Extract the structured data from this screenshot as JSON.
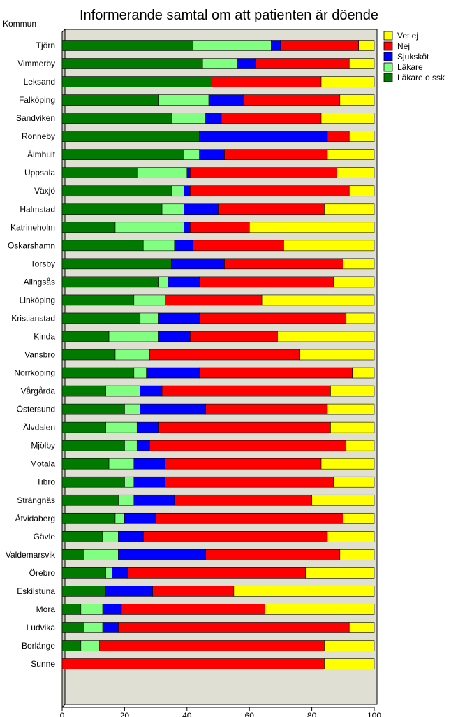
{
  "chart_data": {
    "type": "bar",
    "orientation": "horizontal",
    "stacked": true,
    "title": "Informerande samtal om att patienten är döende",
    "category_axis_label": "Kommun",
    "xlim": [
      0,
      100
    ],
    "x_ticks": [
      "0",
      "20",
      "40",
      "60",
      "80",
      "100"
    ],
    "legend_position": "right",
    "legend_order": [
      "Vet ej",
      "Nej",
      "Sjuksköt",
      "Läkare",
      "Läkare o ssk"
    ],
    "series": [
      {
        "name": "Läkare o ssk",
        "color": "#007b00"
      },
      {
        "name": "Läkare",
        "color": "#80ff80"
      },
      {
        "name": "Sjuksköt",
        "color": "#0000ff"
      },
      {
        "name": "Nej",
        "color": "#ff0000"
      },
      {
        "name": "Vet ej",
        "color": "#ffff00"
      }
    ],
    "categories": [
      "Tjörn",
      "Vimmerby",
      "Leksand",
      "Falköping",
      "Sandviken",
      "Ronneby",
      "Älmhult",
      "Uppsala",
      "Växjö",
      "Halmstad",
      "Katrineholm",
      "Oskarshamn",
      "Torsby",
      "Alingsås",
      "Linköping",
      "Kristianstad",
      "Kinda",
      "Vansbro",
      "Norrköping",
      "Vårgårda",
      "Östersund",
      "Älvdalen",
      "Mjölby",
      "Motala",
      "Tibro",
      "Strängnäs",
      "Åtvidaberg",
      "Gävle",
      "Valdemarsvik",
      "Örebro",
      "Eskilstuna",
      "Mora",
      "Ludvika",
      "Borlänge",
      "Sunne"
    ],
    "values": [
      [
        42,
        25,
        3,
        25,
        5
      ],
      [
        45,
        11,
        6,
        30,
        8
      ],
      [
        48,
        0,
        0,
        35,
        17
      ],
      [
        31,
        16,
        11,
        31,
        11
      ],
      [
        35,
        11,
        5,
        32,
        17
      ],
      [
        44,
        0,
        41,
        7,
        8
      ],
      [
        39,
        5,
        8,
        33,
        15
      ],
      [
        24,
        16,
        1,
        47,
        12
      ],
      [
        35,
        4,
        2,
        51,
        8
      ],
      [
        32,
        7,
        11,
        34,
        16
      ],
      [
        17,
        22,
        2,
        19,
        40
      ],
      [
        26,
        10,
        6,
        29,
        29
      ],
      [
        35,
        0,
        17,
        38,
        10
      ],
      [
        31,
        3,
        10,
        43,
        13
      ],
      [
        23,
        10,
        0,
        31,
        36
      ],
      [
        25,
        6,
        13,
        47,
        9
      ],
      [
        15,
        16,
        10,
        28,
        31
      ],
      [
        17,
        11,
        0,
        48,
        24
      ],
      [
        23,
        4,
        17,
        49,
        7
      ],
      [
        14,
        11,
        7,
        54,
        14
      ],
      [
        20,
        5,
        21,
        39,
        15
      ],
      [
        14,
        10,
        7,
        55,
        14
      ],
      [
        20,
        4,
        4,
        63,
        9
      ],
      [
        15,
        8,
        10,
        50,
        17
      ],
      [
        20,
        3,
        10,
        54,
        13
      ],
      [
        18,
        5,
        13,
        44,
        20
      ],
      [
        17,
        3,
        10,
        60,
        10
      ],
      [
        13,
        5,
        8,
        59,
        15
      ],
      [
        7,
        11,
        28,
        43,
        11
      ],
      [
        14,
        2,
        5,
        57,
        22
      ],
      [
        14,
        0,
        15,
        26,
        45
      ],
      [
        6,
        7,
        6,
        46,
        35
      ],
      [
        7,
        6,
        5,
        74,
        8
      ],
      [
        6,
        6,
        0,
        72,
        16
      ],
      [
        0,
        0,
        0,
        84,
        16
      ]
    ]
  },
  "colors": {
    "plot_bg": "#e0dfd4",
    "border": "#000000",
    "wall_side": "#c8c7bc"
  }
}
